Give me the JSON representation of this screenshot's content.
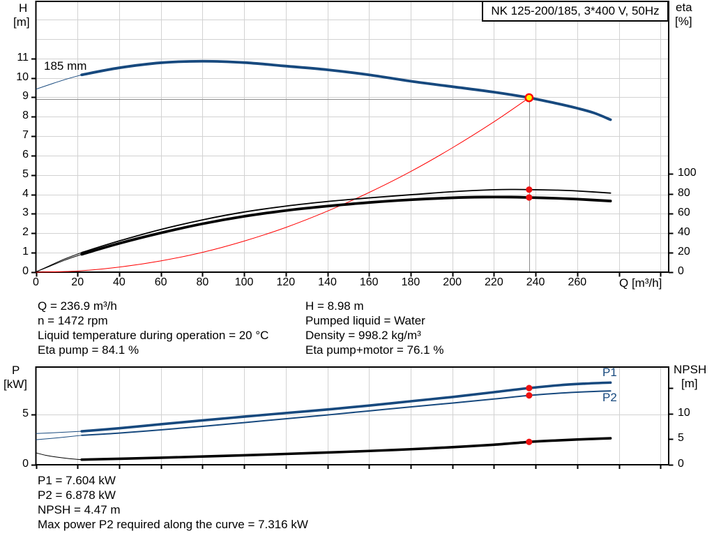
{
  "page": {
    "background": "#FFFFFF"
  },
  "title_box": {
    "text": "NK 125-200/185, 3*400 V, 50Hz"
  },
  "colors": {
    "curve_blue": "#17497E",
    "curve_black": "#000000",
    "system_red": "#FF0000",
    "dot_red": "#EE1111",
    "duty_yellow": "#FFF200",
    "duty_line_gray": "#8A8A8A",
    "grid_gray": "#D2D2D2",
    "axis_black": "#000000"
  },
  "info_blocks": {
    "operating_left": [
      "Q = 236.9 m³/h",
      "n = 1472 rpm",
      "Liquid temperature during operation = 20 °C",
      "Eta pump = 84.1 %"
    ],
    "operating_right": [
      "H = 8.98 m",
      "Pumped liquid = Water",
      "Density = 998.2 kg/m³",
      "Eta pump+motor = 76.1 %"
    ],
    "power_block": [
      "P1 = 7.604 kW",
      "P2 = 6.878 kW",
      "NPSH = 4.47 m",
      "Max power P2 required along the curve = 7.316 kW"
    ]
  },
  "chart_data": [
    {
      "id": "qh",
      "type": "line",
      "title": "NK 125-200/185, 3*400 V, 50Hz",
      "impeller_label": "185 mm",
      "x_axis": {
        "label": "Q [m³/h]",
        "min": 0,
        "max": 304,
        "ticks": [
          {
            "v": 0,
            "label": "0"
          },
          {
            "v": 20,
            "label": "20"
          },
          {
            "v": 40,
            "label": "40"
          },
          {
            "v": 60,
            "label": "60"
          },
          {
            "v": 80,
            "label": "80"
          },
          {
            "v": 100,
            "label": "100"
          },
          {
            "v": 120,
            "label": "120"
          },
          {
            "v": 140,
            "label": "140"
          },
          {
            "v": 160,
            "label": "160"
          },
          {
            "v": 180,
            "label": "180"
          },
          {
            "v": 200,
            "label": "200"
          },
          {
            "v": 220,
            "label": "220"
          },
          {
            "v": 240,
            "label": "240"
          },
          {
            "v": 260,
            "label": "260"
          },
          {
            "v": 280,
            "label": ""
          },
          {
            "v": 300,
            "label": ""
          }
        ],
        "grid": true
      },
      "y_left": {
        "label": "H",
        "unit": "[m]",
        "min": 0,
        "max": 13.94,
        "ticks": [
          {
            "v": 0,
            "label": "0"
          },
          {
            "v": 1,
            "label": "1"
          },
          {
            "v": 2,
            "label": "2"
          },
          {
            "v": 3,
            "label": "3"
          },
          {
            "v": 4,
            "label": "4"
          },
          {
            "v": 5,
            "label": "5"
          },
          {
            "v": 6,
            "label": "6"
          },
          {
            "v": 7,
            "label": "7"
          },
          {
            "v": 8,
            "label": "8"
          },
          {
            "v": 9,
            "label": "9"
          },
          {
            "v": 10,
            "label": "10"
          },
          {
            "v": 11,
            "label": "11"
          }
        ],
        "grid_values": [
          1,
          2,
          3,
          4,
          5,
          6,
          7,
          8,
          9,
          10,
          11,
          12,
          13
        ]
      },
      "y_right": {
        "label": "eta",
        "unit": "[%]",
        "min": 0,
        "max": 276,
        "ticks": [
          {
            "v": 0,
            "label": "0"
          },
          {
            "v": 20,
            "label": "20"
          },
          {
            "v": 40,
            "label": "40"
          },
          {
            "v": 60,
            "label": "60"
          },
          {
            "v": 80,
            "label": "80"
          },
          {
            "v": 100,
            "label": "100"
          }
        ]
      },
      "duty_point": {
        "q": 236.9,
        "h": 8.98,
        "eta_pump": 84.1,
        "eta_pump_motor": 76.1
      },
      "series": [
        {
          "name": "qh-curve-extension",
          "axis": "left",
          "color": "#17497E",
          "width": 1,
          "points": [
            [
              0,
              9.42
            ],
            [
              8,
              9.71
            ],
            [
              15,
              9.95
            ],
            [
              22,
              10.16
            ]
          ]
        },
        {
          "name": "qh-curve",
          "axis": "left",
          "color": "#17497E",
          "width": 3.8,
          "points": [
            [
              22,
              10.16
            ],
            [
              40,
              10.52
            ],
            [
              60,
              10.78
            ],
            [
              80,
              10.86
            ],
            [
              100,
              10.79
            ],
            [
              120,
              10.61
            ],
            [
              140,
              10.42
            ],
            [
              160,
              10.16
            ],
            [
              180,
              9.83
            ],
            [
              200,
              9.55
            ],
            [
              220,
              9.27
            ],
            [
              236.9,
              8.98
            ],
            [
              250,
              8.69
            ],
            [
              260,
              8.44
            ],
            [
              268,
              8.2
            ],
            [
              276,
              7.85
            ]
          ]
        },
        {
          "name": "system-curve",
          "axis": "left",
          "color": "#FF0000",
          "width": 1,
          "points": [
            [
              0,
              0
            ],
            [
              20,
              0.06
            ],
            [
              40,
              0.26
            ],
            [
              60,
              0.58
            ],
            [
              80,
              1.02
            ],
            [
              100,
              1.6
            ],
            [
              120,
              2.3
            ],
            [
              140,
              3.14
            ],
            [
              160,
              4.1
            ],
            [
              180,
              5.18
            ],
            [
              200,
              6.4
            ],
            [
              220,
              7.74
            ],
            [
              236.9,
              8.98
            ]
          ]
        },
        {
          "name": "eta-pump-extension",
          "axis": "right",
          "color": "#000000",
          "width": 1,
          "points": [
            [
              0,
              0.3
            ],
            [
              7,
              7
            ],
            [
              14,
              13.6
            ],
            [
              22,
              20
            ]
          ]
        },
        {
          "name": "eta-pump-curve",
          "axis": "right",
          "color": "#000000",
          "width": 1.8,
          "points": [
            [
              22,
              20
            ],
            [
              40,
              31.8
            ],
            [
              60,
              43.5
            ],
            [
              80,
              53.3
            ],
            [
              100,
              61.3
            ],
            [
              120,
              67.3
            ],
            [
              140,
              72
            ],
            [
              160,
              75.7
            ],
            [
              180,
              78.9
            ],
            [
              200,
              82
            ],
            [
              220,
              84
            ],
            [
              230,
              84.3
            ],
            [
              236.9,
              84.1
            ],
            [
              250,
              83.6
            ],
            [
              260,
              82.8
            ],
            [
              276,
              80.6
            ]
          ]
        },
        {
          "name": "eta-pump-motor-extension",
          "axis": "right",
          "color": "#000000",
          "width": 1,
          "points": [
            [
              0,
              0.3
            ],
            [
              7,
              6.3
            ],
            [
              14,
              12.3
            ],
            [
              22,
              18.2
            ]
          ]
        },
        {
          "name": "eta-pump-motor-curve",
          "axis": "right",
          "color": "#000000",
          "width": 3.8,
          "points": [
            [
              22,
              18.2
            ],
            [
              40,
              29.3
            ],
            [
              60,
              40
            ],
            [
              80,
              49.3
            ],
            [
              100,
              56.9
            ],
            [
              120,
              62.8
            ],
            [
              140,
              67.3
            ],
            [
              160,
              71
            ],
            [
              180,
              73.8
            ],
            [
              200,
              75.8
            ],
            [
              215,
              76.5
            ],
            [
              228,
              76.5
            ],
            [
              236.9,
              76.1
            ],
            [
              250,
              75.3
            ],
            [
              260,
              74.4
            ],
            [
              276,
              72.5
            ]
          ]
        }
      ],
      "duty_lines": {
        "vertical_q": 236.9,
        "horizontal_h": 8.98
      },
      "markers": [
        {
          "name": "eta-pump-duty-dot",
          "axis": "right",
          "q": 236.9,
          "v": 84.1,
          "r": 4.6,
          "fill": "#EE1111"
        },
        {
          "name": "eta-pump-motor-duty-dot",
          "axis": "right",
          "q": 236.9,
          "v": 76.1,
          "r": 4.6,
          "fill": "#EE1111"
        },
        {
          "name": "duty-point-marker",
          "axis": "left",
          "q": 236.9,
          "v": 8.98,
          "r": 5.2,
          "fill": "#FFF200",
          "stroke": "#FF0000",
          "stroke_width": 2.4
        }
      ]
    },
    {
      "id": "power",
      "type": "line",
      "x_axis": {
        "label": "",
        "min": 0,
        "max": 304,
        "ticks": [
          {
            "v": 0,
            "label": ""
          },
          {
            "v": 20,
            "label": ""
          },
          {
            "v": 40,
            "label": ""
          },
          {
            "v": 60,
            "label": ""
          },
          {
            "v": 80,
            "label": ""
          },
          {
            "v": 100,
            "label": ""
          },
          {
            "v": 120,
            "label": ""
          },
          {
            "v": 140,
            "label": ""
          },
          {
            "v": 160,
            "label": ""
          },
          {
            "v": 180,
            "label": ""
          },
          {
            "v": 200,
            "label": ""
          },
          {
            "v": 220,
            "label": ""
          },
          {
            "v": 240,
            "label": ""
          },
          {
            "v": 260,
            "label": ""
          },
          {
            "v": 280,
            "label": ""
          },
          {
            "v": 300,
            "label": ""
          }
        ],
        "grid": true
      },
      "y_left": {
        "label": "P",
        "unit": "[kW]",
        "min": 0,
        "max": 9.69,
        "ticks": [
          {
            "v": 0,
            "label": "0"
          },
          {
            "v": 5,
            "label": "5"
          }
        ],
        "grid_values": [
          5
        ]
      },
      "y_right": {
        "label": "NPSH",
        "unit": "[m]",
        "min": 0,
        "max": 19.13,
        "ticks": [
          {
            "v": 0,
            "label": "0"
          },
          {
            "v": 5,
            "label": "5"
          },
          {
            "v": 10,
            "label": "10"
          },
          {
            "v": 15,
            "label": ""
          }
        ]
      },
      "curve_labels": {
        "p1": "P1",
        "p2": "P2"
      },
      "duty_point": {
        "q": 236.9,
        "p1": 7.604,
        "p2": 6.878,
        "npsh": 4.47
      },
      "series": [
        {
          "name": "p1-curve-extension",
          "axis": "left",
          "color": "#17497E",
          "width": 1,
          "points": [
            [
              0,
              3.1
            ],
            [
              11,
              3.2
            ],
            [
              22,
              3.32
            ]
          ]
        },
        {
          "name": "p1-curve",
          "axis": "left",
          "color": "#17497E",
          "width": 3.6,
          "points": [
            [
              22,
              3.32
            ],
            [
              40,
              3.62
            ],
            [
              60,
              4.02
            ],
            [
              80,
              4.4
            ],
            [
              100,
              4.77
            ],
            [
              120,
              5.13
            ],
            [
              140,
              5.48
            ],
            [
              160,
              5.87
            ],
            [
              180,
              6.3
            ],
            [
              200,
              6.72
            ],
            [
              220,
              7.2
            ],
            [
              236.9,
              7.604
            ],
            [
              252,
              7.9
            ],
            [
              264,
              8.05
            ],
            [
              276,
              8.15
            ]
          ]
        },
        {
          "name": "p2-curve-extension",
          "axis": "left",
          "color": "#17497E",
          "width": 1,
          "points": [
            [
              0,
              2.48
            ],
            [
              11,
              2.68
            ],
            [
              22,
              2.92
            ]
          ]
        },
        {
          "name": "p2-curve",
          "axis": "left",
          "color": "#17497E",
          "width": 2,
          "points": [
            [
              22,
              2.92
            ],
            [
              40,
              3.14
            ],
            [
              60,
              3.46
            ],
            [
              80,
              3.81
            ],
            [
              100,
              4.18
            ],
            [
              120,
              4.56
            ],
            [
              140,
              4.94
            ],
            [
              160,
              5.34
            ],
            [
              180,
              5.74
            ],
            [
              200,
              6.12
            ],
            [
              220,
              6.52
            ],
            [
              236.9,
              6.878
            ],
            [
              250,
              7.08
            ],
            [
              260,
              7.2
            ],
            [
              268,
              7.27
            ],
            [
              276,
              7.32
            ]
          ]
        },
        {
          "name": "npsh-curve-extension",
          "axis": "right",
          "color": "#000000",
          "width": 1,
          "points": [
            [
              0,
              2.33
            ],
            [
              5,
              1.83
            ],
            [
              10,
              1.5
            ],
            [
              16,
              1.2
            ],
            [
              22,
              1.0
            ]
          ]
        },
        {
          "name": "npsh-curve",
          "axis": "right",
          "color": "#000000",
          "width": 3.6,
          "points": [
            [
              22,
              1.0
            ],
            [
              40,
              1.17
            ],
            [
              60,
              1.38
            ],
            [
              80,
              1.61
            ],
            [
              100,
              1.86
            ],
            [
              120,
              2.12
            ],
            [
              140,
              2.4
            ],
            [
              160,
              2.7
            ],
            [
              180,
              3.04
            ],
            [
              200,
              3.44
            ],
            [
              220,
              3.92
            ],
            [
              236.9,
              4.47
            ],
            [
              250,
              4.76
            ],
            [
              260,
              4.95
            ],
            [
              268,
              5.07
            ],
            [
              276,
              5.18
            ]
          ]
        }
      ],
      "markers": [
        {
          "name": "p1-duty-dot",
          "axis": "left",
          "q": 236.9,
          "v": 7.604,
          "r": 4.6,
          "fill": "#EE1111"
        },
        {
          "name": "p2-duty-dot",
          "axis": "left",
          "q": 236.9,
          "v": 6.878,
          "r": 4.6,
          "fill": "#EE1111"
        },
        {
          "name": "npsh-duty-dot",
          "axis": "right",
          "q": 236.9,
          "v": 4.47,
          "r": 4.6,
          "fill": "#EE1111"
        }
      ]
    }
  ]
}
